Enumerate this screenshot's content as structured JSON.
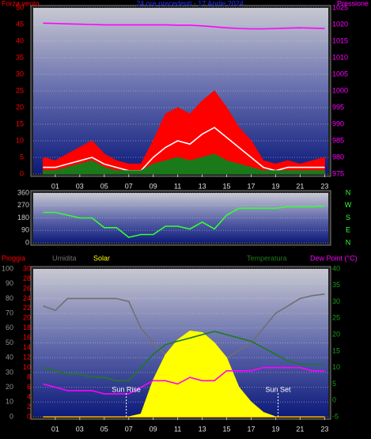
{
  "chart_data": [
    {
      "type": "line",
      "title": "24 ore precedenti - 17 Aprile 2024",
      "ylabel": "Forza vento",
      "y2label": "Pressione",
      "x": [
        0,
        1,
        2,
        3,
        4,
        5,
        6,
        7,
        8,
        9,
        10,
        11,
        12,
        13,
        14,
        15,
        16,
        17,
        18,
        19,
        20,
        21,
        22,
        23
      ],
      "xlim": [
        -0.8,
        23.3
      ],
      "xticks": [
        {
          "value": 1,
          "label": "01"
        },
        {
          "value": 3,
          "label": "03"
        },
        {
          "value": 5,
          "label": "05"
        },
        {
          "value": 7,
          "label": "07"
        },
        {
          "value": 9,
          "label": "09"
        },
        {
          "value": 11,
          "label": "11"
        },
        {
          "value": 13,
          "label": "13"
        },
        {
          "value": 15,
          "label": "15"
        },
        {
          "value": 17,
          "label": "17"
        },
        {
          "value": 19,
          "label": "19"
        },
        {
          "value": 21,
          "label": "21"
        },
        {
          "value": 23,
          "label": "23"
        }
      ],
      "ylim": [
        0,
        50
      ],
      "yticks": [
        0,
        5,
        10,
        15,
        20,
        25,
        30,
        35,
        40,
        45,
        50
      ],
      "y2lim": [
        975,
        1025
      ],
      "y2ticks": [
        975,
        980,
        985,
        990,
        995,
        1000,
        1005,
        1010,
        1015,
        1020,
        1025
      ],
      "grid": true,
      "series": [
        {
          "color": "#ff0000",
          "fill": true,
          "values": [
            5,
            4,
            6,
            8,
            10,
            6,
            4,
            3,
            3,
            10,
            18,
            20,
            18,
            22,
            25,
            20,
            14,
            10,
            4,
            3,
            4,
            3,
            4,
            5
          ]
        },
        {
          "color": "#ffffff",
          "fill": false,
          "values": [
            2,
            2,
            3,
            4,
            5,
            3,
            2,
            1,
            1,
            5,
            8,
            10,
            9,
            12,
            14,
            11,
            8,
            5,
            2,
            1,
            2,
            2,
            2,
            2
          ]
        },
        {
          "color": "#1a7a1a",
          "fill": true,
          "values": [
            1,
            1,
            2,
            3,
            4,
            2,
            1,
            1,
            1,
            3,
            4,
            5,
            4,
            5,
            6,
            4,
            3,
            2,
            1,
            1,
            1,
            1,
            1,
            1
          ]
        },
        {
          "color": "#ff00ff",
          "fill": false,
          "axis": "y2",
          "values": [
            1020.4,
            1020.3,
            1020.2,
            1020.1,
            1020.0,
            1019.9,
            1019.9,
            1019.9,
            1019.9,
            1019.9,
            1019.9,
            1019.8,
            1019.8,
            1019.6,
            1019.3,
            1019.0,
            1018.8,
            1018.7,
            1018.7,
            1018.8,
            1018.9,
            1019.0,
            1018.9,
            1018.8
          ]
        }
      ]
    },
    {
      "type": "line",
      "x": [
        0,
        1,
        2,
        3,
        4,
        5,
        6,
        7,
        8,
        9,
        10,
        11,
        12,
        13,
        14,
        15,
        16,
        17,
        18,
        19,
        20,
        21,
        22,
        23
      ],
      "xlim": [
        -0.8,
        23.3
      ],
      "ylim": [
        0,
        360
      ],
      "yticks": [
        0,
        90,
        180,
        270,
        360
      ],
      "y2lim": [
        0,
        360
      ],
      "y2ticks": [
        {
          "value": 360,
          "label": "N"
        },
        {
          "value": 270,
          "label": "W"
        },
        {
          "value": 180,
          "label": "S"
        },
        {
          "value": 90,
          "label": "E"
        },
        {
          "value": 0,
          "label": "N"
        }
      ],
      "grid": true,
      "series": [
        {
          "color": "#33ff33",
          "fill": false,
          "values": [
            220,
            220,
            200,
            180,
            180,
            110,
            110,
            40,
            60,
            60,
            120,
            120,
            100,
            150,
            100,
            200,
            250,
            250,
            250,
            250,
            260,
            260,
            260,
            265
          ]
        }
      ]
    },
    {
      "type": "line",
      "x": [
        0,
        1,
        2,
        3,
        4,
        5,
        6,
        7,
        8,
        9,
        10,
        11,
        12,
        13,
        14,
        15,
        16,
        17,
        18,
        19,
        20,
        21,
        22,
        23
      ],
      "xlim": [
        -0.8,
        23.3
      ],
      "xticks": [
        {
          "value": 1,
          "label": "01"
        },
        {
          "value": 3,
          "label": "03"
        },
        {
          "value": 5,
          "label": "05"
        },
        {
          "value": 7,
          "label": "07"
        },
        {
          "value": 9,
          "label": "09"
        },
        {
          "value": 11,
          "label": "11"
        },
        {
          "value": 13,
          "label": "13"
        },
        {
          "value": 15,
          "label": "15"
        },
        {
          "value": 17,
          "label": "17"
        },
        {
          "value": 19,
          "label": "19"
        },
        {
          "value": 21,
          "label": "21"
        },
        {
          "value": 23,
          "label": "23"
        }
      ],
      "ylim": [
        0,
        100
      ],
      "yticks": [
        0,
        10,
        20,
        30,
        40,
        50,
        60,
        70,
        80,
        90,
        100
      ],
      "y3lim": [
        0,
        30
      ],
      "y3ticks": [
        0,
        2,
        4,
        6,
        8,
        10,
        12,
        14,
        16,
        18,
        20,
        22,
        24,
        26,
        28,
        30
      ],
      "y2lim": [
        -5,
        40
      ],
      "y2ticks": [
        -5,
        0,
        5,
        10,
        15,
        20,
        25,
        30,
        35,
        40
      ],
      "grid": true,
      "annotations": [
        {
          "text": "Sun Rise",
          "x": 6.8
        },
        {
          "text": "Sun Set",
          "x": 19.2
        }
      ],
      "series": [
        {
          "name": "Pioggia",
          "color": "#ff0000",
          "fill": false,
          "axis": "y3",
          "values": [
            0,
            0,
            0,
            0,
            0,
            0,
            0,
            0,
            0,
            0,
            0,
            0,
            0,
            0,
            0,
            0,
            0,
            0,
            0,
            0,
            0,
            0,
            0,
            0
          ]
        },
        {
          "name": "Umidita",
          "color": "#707070",
          "fill": false,
          "values": [
            75,
            72,
            80,
            80,
            80,
            80,
            80,
            78,
            60,
            50,
            42,
            38,
            32,
            30,
            35,
            40,
            45,
            50,
            60,
            70,
            75,
            80,
            82,
            83
          ]
        },
        {
          "name": "Solar",
          "color": "#ffff00",
          "fill": true,
          "values": [
            0,
            0,
            0,
            0,
            0,
            0,
            0,
            0,
            2,
            25,
            42,
            52,
            58,
            57,
            50,
            40,
            20,
            10,
            3,
            0,
            0,
            0,
            0,
            0
          ]
        },
        {
          "name": "Temperatura",
          "color": "#1e7a1e",
          "fill": false,
          "axis": "y2",
          "values": [
            10,
            9,
            8,
            8,
            7,
            7,
            6,
            6,
            10,
            14,
            17,
            18,
            19,
            20,
            21,
            20,
            19,
            18,
            16,
            14,
            12,
            11,
            11,
            11
          ]
        },
        {
          "name": "Dew Point (°C)",
          "color": "#ff00ff",
          "fill": false,
          "axis": "y2",
          "values": [
            5,
            4,
            3,
            3,
            3,
            2,
            2,
            2,
            4,
            6,
            6,
            5,
            7,
            6,
            6,
            9,
            9,
            9,
            10,
            10,
            10,
            10,
            9,
            9
          ]
        }
      ]
    }
  ]
}
